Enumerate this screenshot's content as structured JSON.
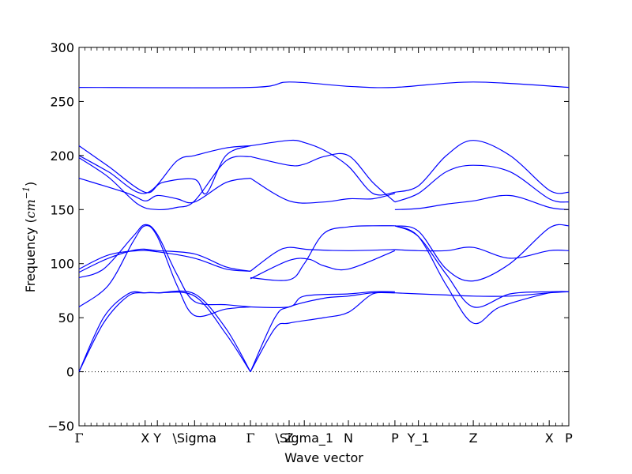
{
  "chart_data": {
    "type": "line",
    "title": "",
    "xlabel": "Wave vector",
    "ylabel_prefix": "Frequency (",
    "ylabel_unit_base": "cm",
    "ylabel_unit_exp": "−1",
    "ylabel_suffix": ")",
    "ylim": [
      -50,
      300
    ],
    "yticks": [
      -50,
      0,
      50,
      100,
      150,
      200,
      250,
      300
    ],
    "ytick_labels": [
      "−50",
      "0",
      "50",
      "100",
      "150",
      "200",
      "250",
      "300"
    ],
    "xlim": [
      0,
      1
    ],
    "zero_line": true,
    "line_color": "#0000ff",
    "high_symmetry_points": [
      {
        "label": "Γ",
        "x": 0.0
      },
      {
        "label": "X",
        "x": 0.135
      },
      {
        "label": "Y",
        "x": 0.16
      },
      {
        "label": "\\Sigma",
        "x": 0.236
      },
      {
        "label": "Γ",
        "x": 0.35
      },
      {
        "label": "Z",
        "x": 0.429
      },
      {
        "label": "\\Sigma_1",
        "x": 0.46
      },
      {
        "label": "N",
        "x": 0.55
      },
      {
        "label": "P",
        "x": 0.645
      },
      {
        "label": "Y_1",
        "x": 0.693
      },
      {
        "label": "Z",
        "x": 0.805
      },
      {
        "label": "X",
        "x": 0.96
      },
      {
        "label": "P",
        "x": 1.0
      }
    ],
    "series": [
      {
        "x": [
          0.0,
          0.05,
          0.1,
          0.135,
          0.16,
          0.236,
          0.3,
          0.35
        ],
        "y": [
          0,
          50,
          72,
          73,
          73,
          72,
          40,
          0
        ]
      },
      {
        "x": [
          0.0,
          0.05,
          0.1,
          0.135,
          0.16,
          0.236,
          0.3,
          0.35
        ],
        "y": [
          0,
          45,
          70,
          73,
          73,
          70,
          35,
          0
        ]
      },
      {
        "x": [
          0.0,
          0.06,
          0.11,
          0.135,
          0.16,
          0.2,
          0.236,
          0.3,
          0.35
        ],
        "y": [
          60,
          80,
          120,
          135,
          125,
          80,
          52,
          58,
          60
        ]
      },
      {
        "x": [
          0.0,
          0.05,
          0.11,
          0.135,
          0.16,
          0.2,
          0.236,
          0.3,
          0.35
        ],
        "y": [
          87,
          95,
          125,
          136,
          127,
          90,
          65,
          62,
          60
        ]
      },
      {
        "x": [
          0.0,
          0.06,
          0.12,
          0.16,
          0.236,
          0.3,
          0.35
        ],
        "y": [
          92,
          105,
          113,
          112,
          109,
          97,
          93
        ]
      },
      {
        "x": [
          0.0,
          0.06,
          0.12,
          0.16,
          0.236,
          0.3,
          0.35
        ],
        "y": [
          95,
          108,
          112,
          111,
          105,
          95,
          93
        ]
      },
      {
        "x": [
          0.0,
          0.1,
          0.135,
          0.16,
          0.2,
          0.236,
          0.3,
          0.35
        ],
        "y": [
          179,
          165,
          158,
          163,
          160,
          157,
          175,
          179
        ]
      },
      {
        "x": [
          0.0,
          0.06,
          0.12,
          0.16,
          0.2,
          0.236,
          0.3,
          0.35
        ],
        "y": [
          198,
          180,
          155,
          150,
          152,
          158,
          195,
          199
        ]
      },
      {
        "x": [
          0.0,
          0.06,
          0.135,
          0.2,
          0.236,
          0.3,
          0.35
        ],
        "y": [
          200,
          185,
          165,
          195,
          200,
          207,
          209
        ]
      },
      {
        "x": [
          0.0,
          0.06,
          0.135,
          0.17,
          0.236,
          0.26,
          0.3,
          0.35
        ],
        "y": [
          209,
          190,
          166,
          175,
          178,
          165,
          200,
          209
        ]
      },
      {
        "x": [
          0.0,
          0.35,
          0.429,
          0.55,
          0.645,
          0.805,
          1.0
        ],
        "y": [
          263,
          263,
          268,
          264,
          263,
          268,
          263
        ]
      },
      {
        "x": [
          0.35,
          0.4,
          0.429,
          0.5,
          0.55,
          0.6,
          0.645
        ],
        "y": [
          0,
          40,
          45,
          50,
          55,
          72,
          73
        ]
      },
      {
        "x": [
          0.35,
          0.4,
          0.429,
          0.5,
          0.55,
          0.6,
          0.645
        ],
        "y": [
          0,
          50,
          60,
          68,
          70,
          73,
          73
        ]
      },
      {
        "x": [
          0.35,
          0.429,
          0.46,
          0.55,
          0.6,
          0.645
        ],
        "y": [
          60,
          60,
          70,
          72,
          74,
          74
        ]
      },
      {
        "x": [
          0.35,
          0.429,
          0.46,
          0.5,
          0.55,
          0.6,
          0.645
        ],
        "y": [
          87,
          85,
          100,
          128,
          134,
          135,
          135
        ]
      },
      {
        "x": [
          0.35,
          0.4,
          0.429,
          0.47,
          0.55,
          0.645
        ],
        "y": [
          93,
          110,
          115,
          113,
          112,
          113
        ]
      },
      {
        "x": [
          0.35,
          0.429,
          0.47,
          0.5,
          0.55,
          0.645
        ],
        "y": [
          86,
          103,
          104,
          98,
          95,
          112
        ]
      },
      {
        "x": [
          0.35,
          0.429,
          0.5,
          0.55,
          0.6,
          0.645
        ],
        "y": [
          179,
          158,
          157,
          160,
          160,
          165
        ]
      },
      {
        "x": [
          0.35,
          0.429,
          0.46,
          0.5,
          0.55,
          0.6,
          0.645
        ],
        "y": [
          199,
          191,
          192,
          199,
          200,
          175,
          157
        ]
      },
      {
        "x": [
          0.35,
          0.429,
          0.46,
          0.5,
          0.55,
          0.6,
          0.645
        ],
        "y": [
          209,
          214,
          212,
          205,
          190,
          165,
          166
        ]
      },
      {
        "x": [
          0.645,
          0.693,
          0.75,
          0.805,
          0.86,
          0.96,
          1.0
        ],
        "y": [
          135,
          125,
          80,
          45,
          60,
          73,
          74
        ]
      },
      {
        "x": [
          0.645,
          0.693,
          0.75,
          0.805,
          0.88,
          0.96,
          1.0
        ],
        "y": [
          135,
          125,
          90,
          60,
          72,
          74,
          74
        ]
      },
      {
        "x": [
          0.645,
          0.693,
          0.75,
          0.805,
          0.88,
          0.96,
          1.0
        ],
        "y": [
          135,
          130,
          95,
          84,
          100,
          133,
          135
        ]
      },
      {
        "x": [
          0.645,
          0.693,
          0.75,
          0.805,
          0.88,
          0.96,
          1.0
        ],
        "y": [
          113,
          112,
          112,
          115,
          105,
          112,
          112
        ]
      },
      {
        "x": [
          0.645,
          0.693,
          0.75,
          0.805,
          0.88,
          0.96,
          1.0
        ],
        "y": [
          73,
          72,
          71,
          70,
          70,
          73,
          74
        ]
      },
      {
        "x": [
          0.645,
          0.693,
          0.75,
          0.805,
          0.88,
          0.96,
          1.0
        ],
        "y": [
          150,
          151,
          155,
          158,
          163,
          152,
          150
        ]
      },
      {
        "x": [
          0.645,
          0.693,
          0.75,
          0.805,
          0.88,
          0.96,
          1.0
        ],
        "y": [
          157,
          165,
          185,
          191,
          185,
          160,
          157
        ]
      },
      {
        "x": [
          0.645,
          0.693,
          0.75,
          0.805,
          0.88,
          0.96,
          1.0
        ],
        "y": [
          166,
          172,
          200,
          214,
          200,
          168,
          166
        ]
      }
    ]
  }
}
